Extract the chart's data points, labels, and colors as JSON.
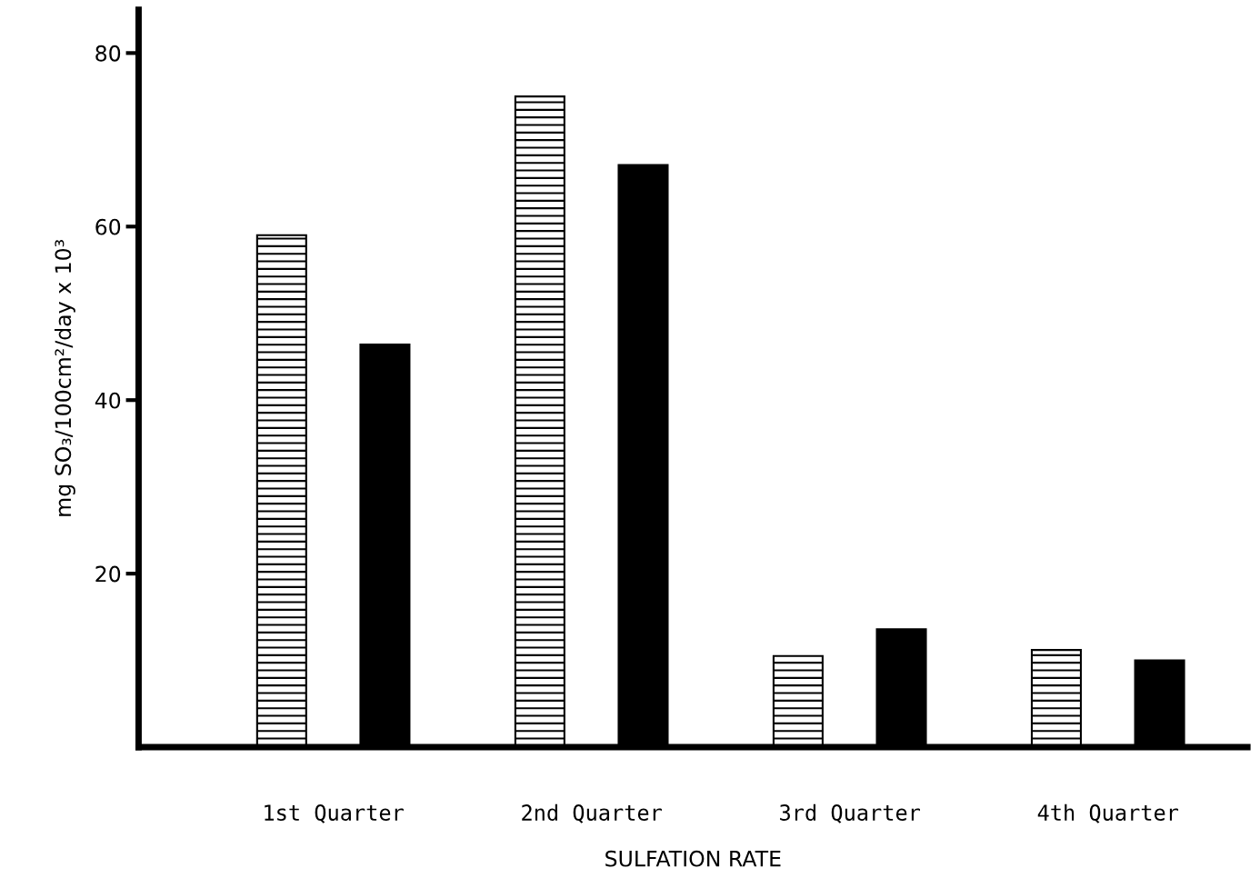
{
  "chart_data": {
    "type": "bar",
    "xlabel": "SULFATION RATE",
    "ylabel": "mg SO₃/100cm²/day x 10³",
    "categories": [
      "1st Quarter",
      "2nd Quarter",
      "3rd Quarter",
      "4th Quarter"
    ],
    "series": [
      {
        "color": "#000000",
        "values": [
          59,
          75,
          10.5,
          11.2
        ]
      },
      {
        "color": "#000000",
        "values": [
          46.4,
          67.1,
          13.6,
          10
        ]
      }
    ],
    "ylim": [
      0,
      85
    ],
    "yticks": [
      20,
      40,
      60,
      80
    ],
    "grid": false,
    "legend": false
  }
}
